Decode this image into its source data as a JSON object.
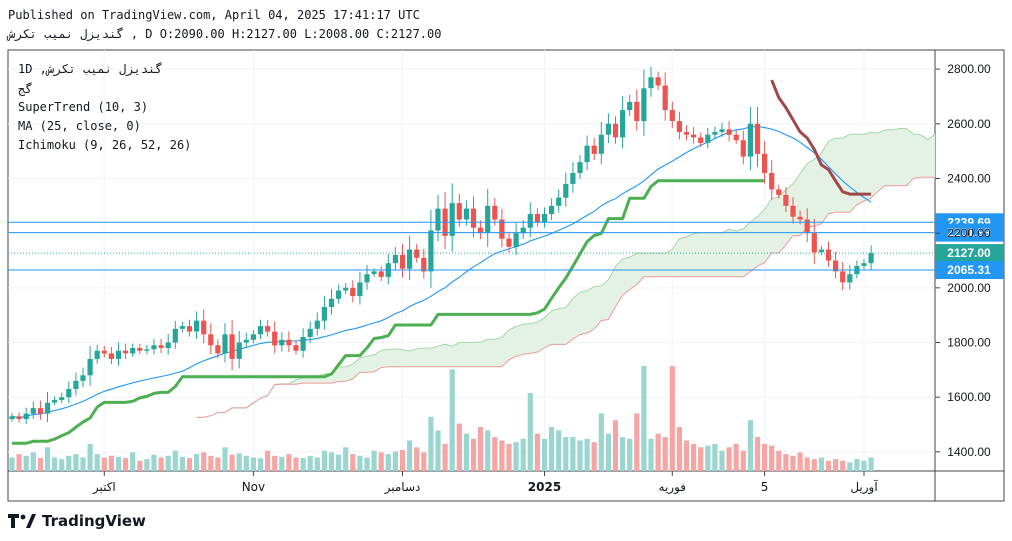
{
  "header": {
    "published": "Published on TradingView.com, April 04, 2025 17:41:17 UTC",
    "symbol_line": "گندیزل نمیب تکرش , D O:2090.00 H:2127.00 L:2008.00 C:2127.00"
  },
  "legend": {
    "symbol": "1D ,گندیزل نمیب تکرش",
    "exchange": "گج",
    "supertrend": "SuperTrend (10, 3)",
    "ma": "MA (25, close, 0)",
    "ichimoku": "Ichimoku (9, 26, 52, 26)"
  },
  "brand": "TradingView",
  "colors": {
    "up": "#26a69a",
    "down": "#ef5350",
    "supertrend_up": "#4caf50",
    "supertrend_down": "#a04848",
    "ma": "#2196f3",
    "cloud_green": "#e3f2e4",
    "cloud_red": "#fbe0e0",
    "hline": "#2196f3",
    "last_price_bg": "#26a69a",
    "label_bg": "#2196f3"
  },
  "chart_data": {
    "type": "candlestick",
    "ylim": [
      1330,
      2870
    ],
    "yticks": [
      1400,
      1600,
      1800,
      2000,
      2200,
      2400,
      2600,
      2800
    ],
    "ytick_labels": [
      "1400.00",
      "1600.00",
      "1800.00",
      "2000.00",
      "2200.00",
      "2400.00",
      "2600.00",
      "2800.00"
    ],
    "xtick_labels": [
      {
        "bar": 13,
        "label": "اکتبر"
      },
      {
        "bar": 34,
        "label": "Nov"
      },
      {
        "bar": 55,
        "label": "دسامبر"
      },
      {
        "bar": 75,
        "label": "2025",
        "bold": true
      },
      {
        "bar": 93,
        "label": "فوریه"
      },
      {
        "bar": 106,
        "label": "5"
      },
      {
        "bar": 120,
        "label": "آوریل"
      }
    ],
    "price_labels": [
      {
        "value": 2239.69,
        "label": "2239.69",
        "kind": "line"
      },
      {
        "value": 2201.99,
        "label": "2201.99",
        "kind": "line"
      },
      {
        "value": 2127.0,
        "label": "2127.00",
        "kind": "last"
      },
      {
        "value": 2065.31,
        "label": "2065.31",
        "kind": "line"
      }
    ],
    "closes": [
      1530,
      1520,
      1540,
      1560,
      1540,
      1580,
      1590,
      1600,
      1630,
      1660,
      1680,
      1740,
      1770,
      1760,
      1740,
      1770,
      1760,
      1780,
      1770,
      1775,
      1790,
      1780,
      1800,
      1850,
      1860,
      1840,
      1880,
      1830,
      1790,
      1760,
      1830,
      1740,
      1800,
      1810,
      1830,
      1860,
      1840,
      1790,
      1810,
      1790,
      1770,
      1820,
      1850,
      1880,
      1930,
      1960,
      1990,
      2000,
      1970,
      2020,
      2050,
      2060,
      2040,
      2090,
      2120,
      2070,
      2140,
      2110,
      2060,
      2210,
      2290,
      2190,
      2310,
      2250,
      2290,
      2220,
      2200,
      2300,
      2250,
      2180,
      2150,
      2200,
      2220,
      2270,
      2240,
      2270,
      2300,
      2330,
      2380,
      2420,
      2460,
      2520,
      2490,
      2560,
      2600,
      2550,
      2650,
      2680,
      2610,
      2730,
      2770,
      2740,
      2650,
      2610,
      2570,
      2560,
      2550,
      2530,
      2560,
      2570,
      2580,
      2560,
      2540,
      2480,
      2600,
      2490,
      2420,
      2360,
      2340,
      2300,
      2260,
      2250,
      2200,
      2130,
      2140,
      2100,
      2060,
      2020,
      2050,
      2080,
      2090,
      2127
    ],
    "volumes": [
      40,
      50,
      45,
      55,
      38,
      70,
      40,
      35,
      45,
      50,
      40,
      80,
      50,
      40,
      45,
      42,
      38,
      55,
      30,
      35,
      48,
      40,
      45,
      60,
      42,
      38,
      50,
      55,
      45,
      40,
      70,
      48,
      52,
      45,
      40,
      38,
      60,
      45,
      42,
      50,
      40,
      38,
      45,
      40,
      60,
      55,
      48,
      70,
      50,
      45,
      40,
      60,
      55,
      50,
      58,
      62,
      90,
      70,
      55,
      160,
      120,
      80,
      300,
      140,
      110,
      95,
      130,
      120,
      100,
      90,
      80,
      85,
      95,
      230,
      110,
      95,
      130,
      120,
      100,
      100,
      90,
      95,
      85,
      170,
      110,
      150,
      100,
      95,
      170,
      310,
      95,
      110,
      100,
      310,
      130,
      90,
      80,
      70,
      75,
      80,
      60,
      70,
      80,
      60,
      150,
      100,
      80,
      75,
      60,
      50,
      45,
      55,
      40,
      35,
      40,
      30,
      35,
      30,
      25,
      35,
      30,
      40
    ]
  }
}
